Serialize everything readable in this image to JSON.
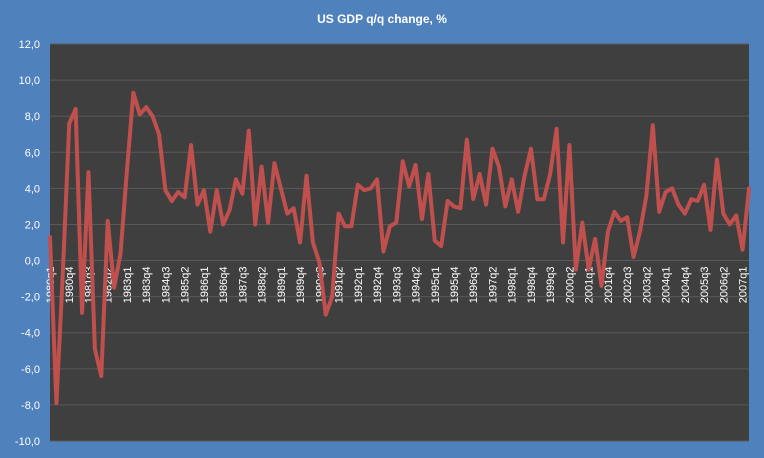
{
  "chart_data": {
    "type": "line",
    "title": "US GDP q/q change, %",
    "xlabel": "",
    "ylabel": "",
    "ylim": [
      -10,
      12
    ],
    "ytick_step": 2,
    "ytick_labels": [
      "-10,0",
      "-8,0",
      "-6,0",
      "-4,0",
      "-2,0",
      "0,0",
      "2,0",
      "4,0",
      "6,0",
      "8,0",
      "10,0",
      "12,0"
    ],
    "grid": true,
    "legend": "none",
    "colors": {
      "background": "#4f81bd",
      "plot_area": "#3f3f3f",
      "line": "#c0504d",
      "grid": "#595959",
      "text": "#ffffff"
    },
    "xtick_labels": [
      "1980q1",
      "1980q4",
      "1981q3",
      "1982q2",
      "1983q1",
      "1983q4",
      "1984q3",
      "1985q2",
      "1986q1",
      "1986q4",
      "1987q3",
      "1988q2",
      "1989q1",
      "1989q4",
      "1990q3",
      "1991q2",
      "1992q1",
      "1992q4",
      "1993q3",
      "1994q2",
      "1995q1",
      "1995q4",
      "1996q3",
      "1997q2",
      "1998q1",
      "1998q4",
      "1999q3",
      "2000q2",
      "2001q1",
      "2001q4",
      "2002q3",
      "2003q2",
      "2004q1",
      "2004q4",
      "2005q3",
      "2006q2",
      "2007q1"
    ],
    "xtick_every": 3,
    "series": [
      {
        "values": [
          1.3,
          -7.9,
          -0.7,
          7.6,
          8.4,
          -2.9,
          4.9,
          -4.9,
          -6.4,
          2.2,
          -1.5,
          0.4,
          5.0,
          9.3,
          8.1,
          8.5,
          8.0,
          7.0,
          3.9,
          3.3,
          3.8,
          3.5,
          6.4,
          3.1,
          3.9,
          1.6,
          3.9,
          2.0,
          2.8,
          4.5,
          3.7,
          7.2,
          2.0,
          5.2,
          2.1,
          5.4,
          4.0,
          2.6,
          2.9,
          1.0,
          4.7,
          1.0,
          -0.1,
          -3.0,
          -2.0,
          2.6,
          1.9,
          1.9,
          4.2,
          3.9,
          4.0,
          4.5,
          0.5,
          1.9,
          2.1,
          5.5,
          4.1,
          5.3,
          2.3,
          4.8,
          1.1,
          0.8,
          3.3,
          3.0,
          2.9,
          6.7,
          3.4,
          4.8,
          3.1,
          6.2,
          5.2,
          3.0,
          4.5,
          2.7,
          4.7,
          6.2,
          3.4,
          3.4,
          4.8,
          7.3,
          1.0,
          6.4,
          -0.5,
          2.1,
          -0.5,
          1.2,
          -1.4,
          1.6,
          2.7,
          2.2,
          2.4,
          0.2,
          1.6,
          3.6,
          7.5,
          2.7,
          3.8,
          4.0,
          3.1,
          2.6,
          3.4,
          3.3,
          4.2,
          1.7,
          5.6,
          2.6,
          2.0,
          2.5,
          0.6,
          4.0
        ]
      }
    ]
  }
}
